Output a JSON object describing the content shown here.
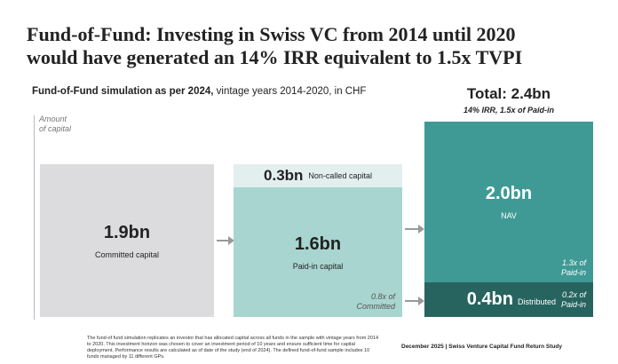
{
  "title_line1": "Fund-of-Fund: Investing in Swiss VC from 2014 until 2020",
  "title_line2": "would have generated an 14% IRR equivalent to 1.5x TVPI",
  "subtitle_bold": "Fund-of-Fund simulation as per 2024,",
  "subtitle_rest": " vintage years 2014-2020, in CHF",
  "axis_label_1": "Amount",
  "axis_label_2": "of capital",
  "committed": {
    "value": "1.9bn",
    "label": "Committed capital"
  },
  "noncalled": {
    "value": "0.3bn",
    "label": "Non-called capital"
  },
  "paidin": {
    "value": "1.6bn",
    "label": "Paid-in capital",
    "ratio1": "0.8x of",
    "ratio2": "Committed"
  },
  "total": {
    "value": "Total: 2.4bn",
    "sub": "14% IRR, 1.5x of Paid-in"
  },
  "nav": {
    "value": "2.0bn",
    "label": "NAV",
    "ratio1": "1.3x of",
    "ratio2": "Paid-in"
  },
  "distributed": {
    "value": "0.4bn",
    "label": "Distributed",
    "ratio1": "0.2x of",
    "ratio2": "Paid-in"
  },
  "footnote": "The fund-of fund simulation replicates an investor that has allocated capital across all funds in the sample with vintage years from 2014 to 2020. This investment horizon was chosen to cover an investment period of 10 years and ensure sufficient time for capital deployment. Performance results are calculated as of date of the study (end of 2024). The defined fund-of-fund sample includes 10 funds managed by 11 different GPs.",
  "source": "December 2025 | Swiss Venture Capital Fund Return Study",
  "colors": {
    "committed": "#dcdcdf",
    "noncalled": "#e2efee",
    "paidin": "#a8d5cf",
    "nav": "#3f9a95",
    "distributed": "#276460"
  }
}
